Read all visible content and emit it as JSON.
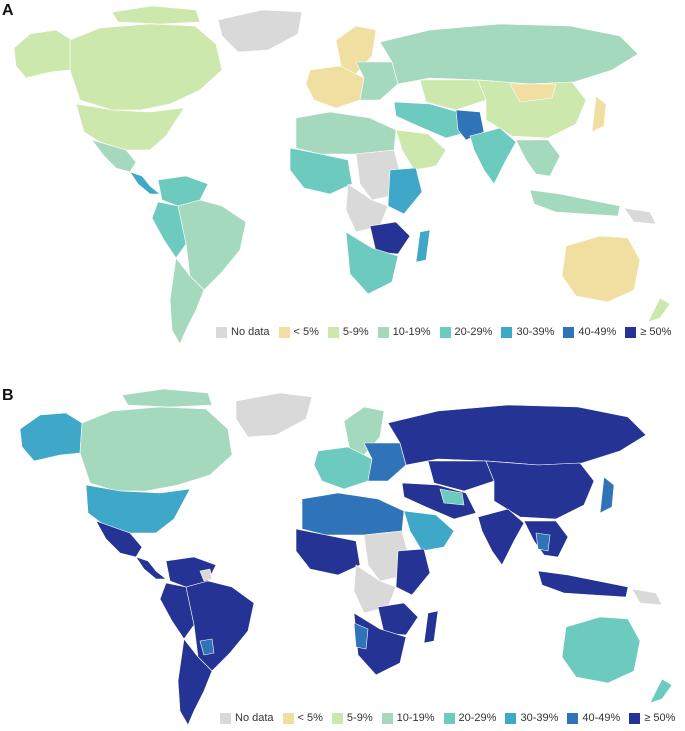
{
  "panel_a": {
    "label": "A"
  },
  "panel_b": {
    "label": "B"
  },
  "legend": [
    {
      "label": "No data",
      "color": "#d9d9d9"
    },
    {
      "label": "< 5%",
      "color": "#f0dfa0"
    },
    {
      "label": "5-9%",
      "color": "#cde8ac"
    },
    {
      "label": "10-19%",
      "color": "#a5d9bd"
    },
    {
      "label": "20-29%",
      "color": "#6ccabf"
    },
    {
      "label": "30-39%",
      "color": "#3fa8c8"
    },
    {
      "label": "40-49%",
      "color": "#2f73b8"
    },
    {
      "label": "≥ 50%",
      "color": "#253494"
    }
  ],
  "colors": {
    "nodata": "#d9d9d9",
    "lt5": "#f0dfa0",
    "c5_9": "#cde8ac",
    "c10_19": "#a5d9bd",
    "c20_29": "#6ccabf",
    "c30_39": "#3fa8c8",
    "c40_49": "#2f73b8",
    "ge50": "#253494"
  }
}
